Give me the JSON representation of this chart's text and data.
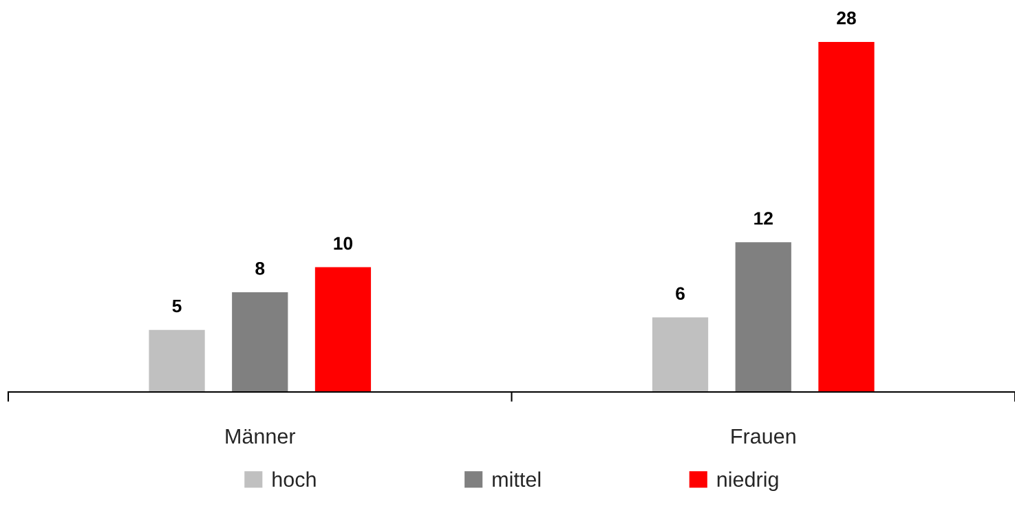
{
  "chart_data": {
    "type": "bar",
    "categories": [
      "Männer",
      "Frauen"
    ],
    "series": [
      {
        "name": "hoch",
        "color": "#c0c0c0",
        "values": [
          5,
          6
        ]
      },
      {
        "name": "mittel",
        "color": "#808080",
        "values": [
          8,
          12
        ]
      },
      {
        "name": "niedrig",
        "color": "#ff0000",
        "values": [
          10,
          28
        ]
      }
    ],
    "data_labels": true,
    "grid": false,
    "legend": "bottom"
  }
}
